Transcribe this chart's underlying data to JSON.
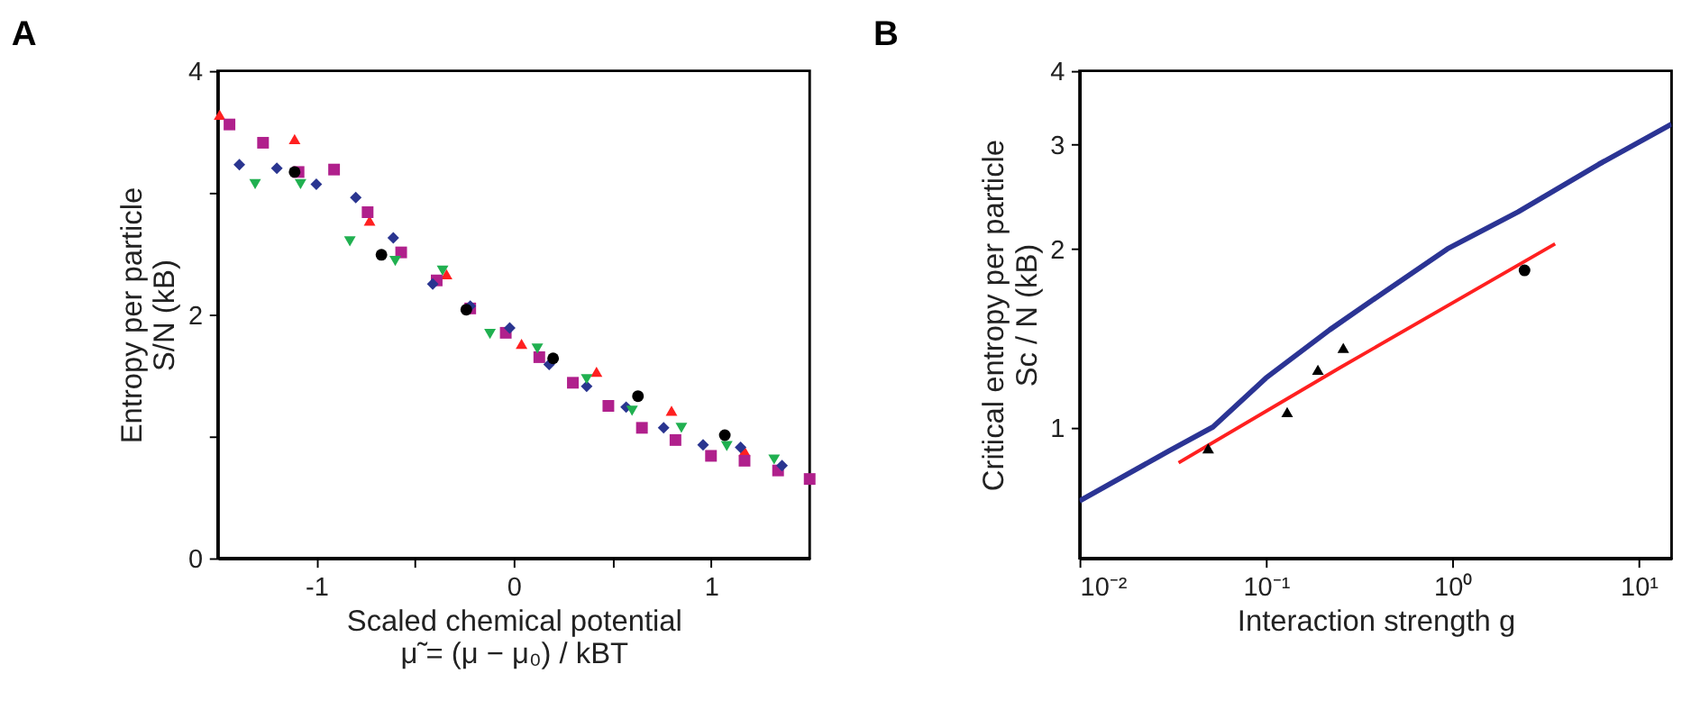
{
  "chart_data": [
    {
      "type": "scatter",
      "title": "A",
      "xlabel": "Scaled chemical potential\nμ̃ = (μ − μ₀) / kBT",
      "ylabel": "Entropy per particle\nS/N (kB)",
      "xlim": [
        -1.5,
        1.5
      ],
      "xticks": [
        -1,
        {
          "value": -0.5,
          "label": null
        },
        0,
        {
          "value": 0.5,
          "label": null
        },
        1
      ],
      "ylim": [
        0,
        4
      ],
      "yticks": [
        0,
        {
          "value": 1,
          "label": null
        },
        2,
        {
          "value": 3,
          "label": null
        },
        4
      ],
      "grid": false,
      "series": [
        {
          "color": "#ff2020",
          "marker": "triangle",
          "x": [
            -1.49,
            -1.11,
            -0.73,
            -0.34,
            0.04,
            0.42,
            0.8,
            1.17
          ],
          "values": [
            3.64,
            3.44,
            2.77,
            2.33,
            1.76,
            1.53,
            1.21,
            0.88
          ]
        },
        {
          "color": "#b0208c",
          "marker": "square",
          "x": [
            -1.44,
            -1.27,
            -1.09,
            -0.91,
            -0.74,
            -0.57,
            -0.39,
            -0.22,
            -0.04,
            0.13,
            0.3,
            0.48,
            0.65,
            0.82,
            1.0,
            1.17,
            1.34,
            1.5
          ],
          "values": [
            3.56,
            3.41,
            3.17,
            3.19,
            2.84,
            2.51,
            2.28,
            2.05,
            1.85,
            1.65,
            1.44,
            1.25,
            1.07,
            0.97,
            0.84,
            0.8,
            0.72,
            0.65
          ]
        },
        {
          "color": "#2a3590",
          "marker": "diamond",
          "x": [
            -1.39,
            -1.2,
            -1.0,
            -0.8,
            -0.61,
            -0.41,
            -0.22,
            -0.02,
            0.18,
            0.37,
            0.57,
            0.76,
            0.96,
            1.15,
            1.36
          ],
          "values": [
            3.23,
            3.2,
            3.07,
            2.96,
            2.63,
            2.25,
            2.07,
            1.89,
            1.59,
            1.41,
            1.24,
            1.07,
            0.93,
            0.91,
            0.76
          ]
        },
        {
          "color": "#20b050",
          "marker": "triangle-down",
          "x": [
            -1.31,
            -1.08,
            -0.83,
            -0.6,
            -0.36,
            -0.12,
            0.12,
            0.37,
            0.6,
            0.85,
            1.08,
            1.32
          ],
          "values": [
            3.07,
            3.07,
            2.6,
            2.44,
            2.36,
            1.84,
            1.72,
            1.47,
            1.21,
            1.07,
            0.92,
            0.81
          ]
        },
        {
          "color": "#000000",
          "marker": "circle",
          "x": [
            -1.11,
            -0.67,
            -0.24,
            0.2,
            0.63,
            1.07
          ],
          "values": [
            3.17,
            2.49,
            2.04,
            1.64,
            1.33,
            1.01
          ]
        }
      ]
    },
    {
      "type": "line",
      "title": "B",
      "xlabel": "Interaction strength g",
      "ylabel": "Critical entropy per particle\nSc / N (kB)",
      "log": "xy",
      "xlim": [
        0.01,
        15
      ],
      "xticks": [
        {
          "value": 0.01,
          "label": "10⁻²"
        },
        {
          "value": 0.1,
          "label": "10⁻¹"
        },
        {
          "value": 1,
          "label": "10⁰"
        },
        {
          "value": 10,
          "label": "10¹"
        }
      ],
      "ylim": [
        0.6,
        4
      ],
      "yticks": [
        1,
        2,
        3,
        4
      ],
      "grid": false,
      "series": [
        {
          "type": "line",
          "color": "#2b3494",
          "line_style": "solid",
          "x": [
            0.01,
            0.03,
            0.052,
            0.1,
            0.22,
            0.43,
            0.94,
            2.25,
            6.1,
            15
          ],
          "values": [
            0.75,
            0.91,
            1.0,
            1.21,
            1.46,
            1.69,
            2.0,
            2.31,
            2.78,
            3.25
          ]
        },
        {
          "type": "line",
          "color": "#ff2020",
          "line_style": "solid",
          "x": [
            0.034,
            0.25,
            3.56
          ],
          "values": [
            0.87,
            1.26,
            2.04
          ]
        },
        {
          "type": "scatter",
          "color": "#000000",
          "marker": "triangle",
          "x": [
            0.049,
            0.13,
            0.19,
            0.26
          ],
          "values": [
            0.92,
            1.06,
            1.25,
            1.36
          ]
        },
        {
          "type": "scatter",
          "color": "#000000",
          "marker": "circle",
          "x": [
            2.44
          ],
          "values": [
            1.84
          ]
        }
      ]
    }
  ]
}
